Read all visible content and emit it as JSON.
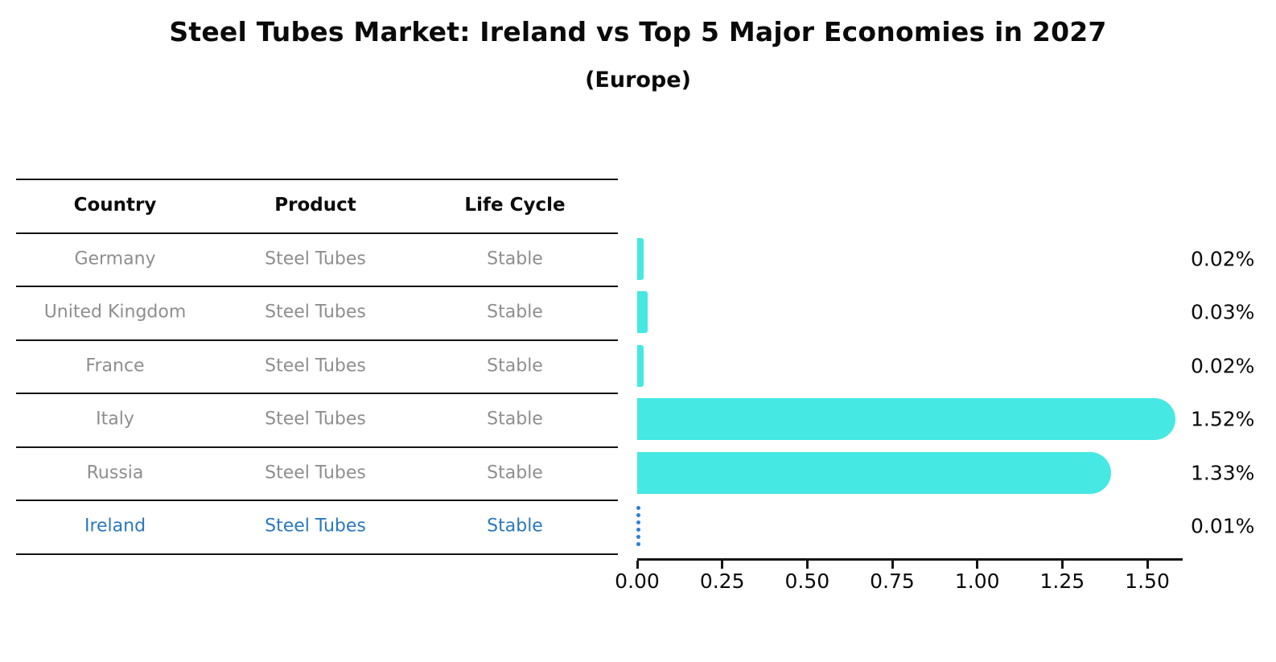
{
  "title": "Steel Tubes Market: Ireland vs Top 5 Major Economies in 2027",
  "subtitle": "(Europe)",
  "table": {
    "headers": [
      "Country",
      "Product",
      "Life Cycle"
    ],
    "rows": [
      {
        "country": "Germany",
        "product": "Steel Tubes",
        "life_cycle": "Stable",
        "highlight": false
      },
      {
        "country": "United Kingdom",
        "product": "Steel Tubes",
        "life_cycle": "Stable",
        "highlight": false
      },
      {
        "country": "France",
        "product": "Steel Tubes",
        "life_cycle": "Stable",
        "highlight": false
      },
      {
        "country": "Italy",
        "product": "Steel Tubes",
        "life_cycle": "Stable",
        "highlight": false
      },
      {
        "country": "Russia",
        "product": "Steel Tubes",
        "life_cycle": "Stable",
        "highlight": false
      },
      {
        "country": "Ireland",
        "product": "Steel Tubes",
        "life_cycle": "Stable",
        "highlight": true
      }
    ]
  },
  "chart_data": {
    "type": "bar",
    "orientation": "horizontal",
    "title": "Steel Tubes Market: Ireland vs Top 5 Major Economies in 2027",
    "subtitle": "(Europe)",
    "categories": [
      "Germany",
      "United Kingdom",
      "France",
      "Italy",
      "Russia",
      "Ireland"
    ],
    "values": [
      0.02,
      0.03,
      0.02,
      1.52,
      1.33,
      0.01
    ],
    "value_labels": [
      "0.02%",
      "0.03%",
      "0.02%",
      "1.52%",
      "1.33%",
      "0.01%"
    ],
    "x_ticks": [
      "0.00",
      "0.25",
      "0.50",
      "0.75",
      "1.00",
      "1.25",
      "1.50"
    ],
    "x_tick_values": [
      0.0,
      0.25,
      0.5,
      0.75,
      1.0,
      1.25,
      1.5
    ],
    "xlim": [
      0,
      1.6
    ],
    "grid": false,
    "legend": false,
    "bar_color": "#45e8e2",
    "highlight_category": "Ireland",
    "highlight_bar_style": "dotted-outline",
    "highlight_bar_color": "#2e7fd9",
    "highlight_text_color": "#2878be"
  }
}
